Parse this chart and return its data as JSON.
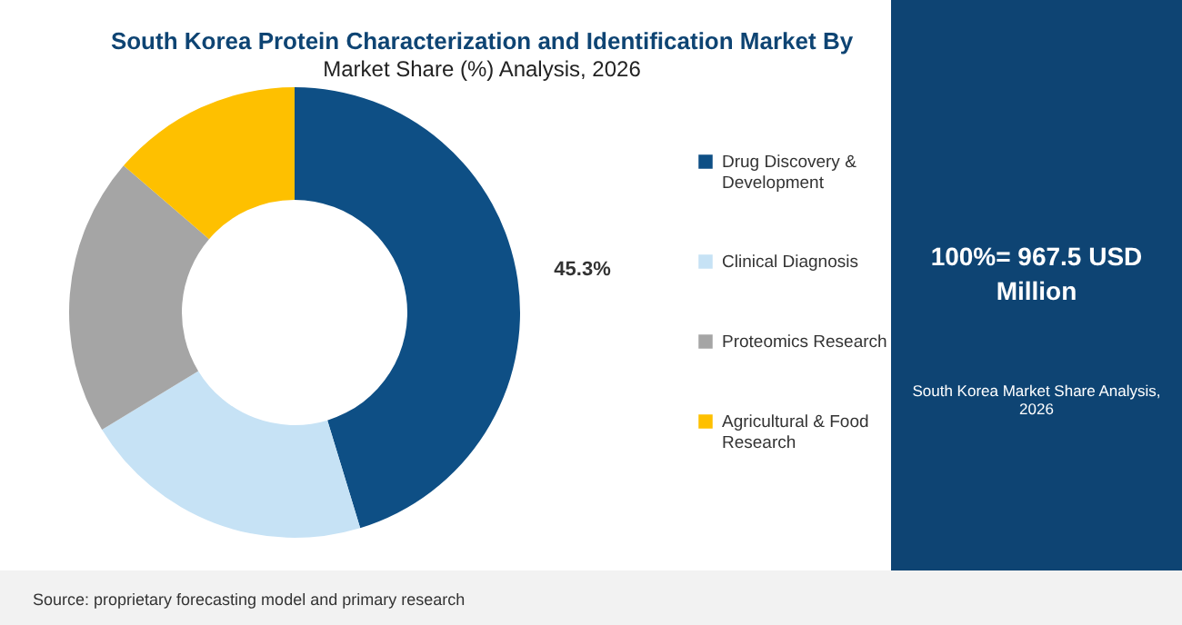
{
  "chart_data": {
    "type": "donut",
    "title": "South Korea Protein Characterization and Identification Market By",
    "subtitle": "Market Share (%) Analysis, 2026",
    "categories": [
      "Drug Discovery & Development",
      "Clinical Diagnosis",
      "Proteomics Research",
      "Agricultural & Food Research"
    ],
    "values": [
      45.3,
      21.0,
      20.0,
      13.7
    ],
    "colors": [
      "#0e4f85",
      "#c6e2f5",
      "#a5a5a5",
      "#fec000"
    ],
    "value_labels": [
      "45.3%",
      null,
      null,
      null
    ],
    "legend": "right",
    "annotations": [
      "100%= 967.5 USD Million",
      "South Korea Market Share Analysis, 2026",
      "Source: proprietary forecasting model and primary research"
    ]
  }
}
